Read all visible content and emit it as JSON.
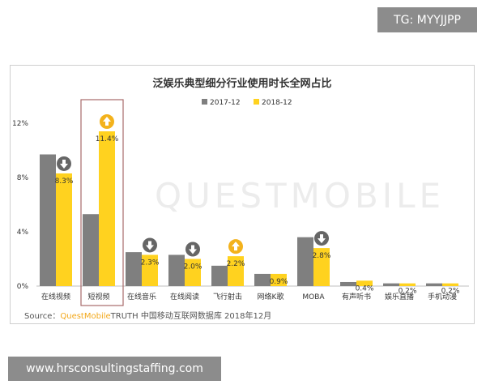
{
  "header": {
    "badge": "TG: MYYJJPP"
  },
  "watermark": {
    "text": "QUESTMOBILE"
  },
  "footer": {
    "url": "www.hrsconsultingstaffing.com"
  },
  "source": {
    "prefix": "Source：",
    "brand": "QuestMobile",
    "rest": "TRUTH 中国移动互联网数据库 2018年12月"
  },
  "colors": {
    "series_2017": "#7f7f7f",
    "series_2018": "#ffd21f",
    "arrow_down": "#666666",
    "arrow_up": "#f3b21c",
    "highlight_box": "#a86a6a"
  },
  "chart_data": {
    "type": "bar",
    "title": "泛娱乐典型细分行业使用时长全网占比",
    "categories": [
      "在线视频",
      "短视频",
      "在线音乐",
      "在线阅读",
      "飞行射击",
      "网络K歌",
      "MOBA",
      "有声听书",
      "娱乐直播",
      "手机动漫"
    ],
    "series": [
      {
        "name": "2017-12",
        "values": [
          9.7,
          5.3,
          2.5,
          2.3,
          1.5,
          0.9,
          3.6,
          0.3,
          0.2,
          0.2
        ]
      },
      {
        "name": "2018-12",
        "values": [
          8.3,
          11.4,
          2.3,
          2.0,
          2.2,
          0.9,
          2.8,
          0.4,
          0.2,
          0.2
        ]
      }
    ],
    "data_labels": [
      "8.3%",
      "11.4%",
      "2.3%",
      "2.0%",
      "2.2%",
      "0.9%",
      "2.8%",
      "0.4%",
      "0.2%",
      "0.2%"
    ],
    "trend_icons": [
      "down",
      "up",
      "down",
      "down",
      "up",
      "",
      "down",
      "",
      "",
      ""
    ],
    "highlighted": "短视频",
    "yticks": [
      "0%",
      "4%",
      "8%",
      "12%"
    ],
    "ylim": [
      0,
      12
    ],
    "legend_position": "top-center",
    "grid": false
  }
}
